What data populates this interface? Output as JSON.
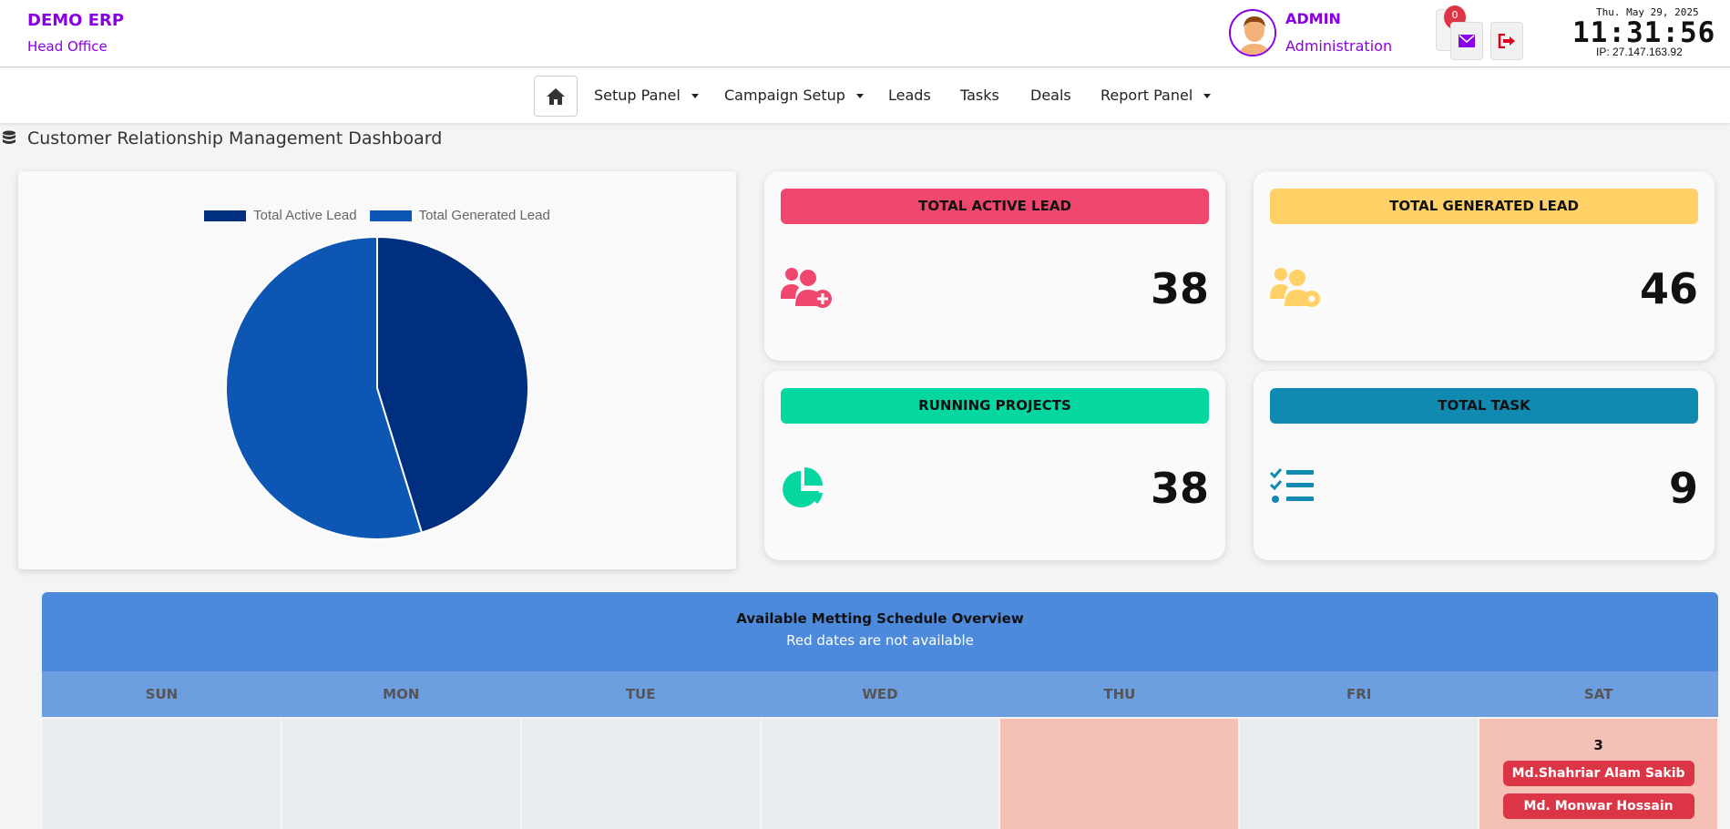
{
  "brand": {
    "name": "DEMO ERP",
    "branch": "Head Office"
  },
  "user": {
    "name": "ADMIN",
    "role": "Administration"
  },
  "notifications": {
    "count": "0"
  },
  "clock": {
    "date": "Thu. May 29, 2025",
    "time": "11:31:56",
    "ip": "IP: 27.147.163.92"
  },
  "nav": {
    "items": [
      {
        "label": "Setup Panel",
        "dropdown": true
      },
      {
        "label": "Campaign Setup",
        "dropdown": true
      },
      {
        "label": "Leads",
        "dropdown": false
      },
      {
        "label": "Tasks",
        "dropdown": false
      },
      {
        "label": "Deals",
        "dropdown": false
      },
      {
        "label": "Report Panel",
        "dropdown": true
      }
    ]
  },
  "page": {
    "title": "Customer Relationship Management Dashboard"
  },
  "chart_data": {
    "type": "pie",
    "series": [
      {
        "name": "Total Active Lead",
        "value": 38,
        "color": "#002f7f"
      },
      {
        "name": "Total Generated Lead",
        "value": 46,
        "color": "#0d56b4"
      }
    ],
    "legend": "top"
  },
  "stats": [
    {
      "label": "TOTAL ACTIVE LEAD",
      "value": "38",
      "color": "#f0476f",
      "icon": "user-add-icon"
    },
    {
      "label": "TOTAL GENERATED LEAD",
      "value": "46",
      "color": "#ffd166",
      "icon": "user-gear-icon"
    },
    {
      "label": "RUNNING PROJECTS",
      "value": "38",
      "color": "#06d6a0",
      "icon": "pie-chart-icon"
    },
    {
      "label": "TOTAL TASK",
      "value": "9",
      "color": "#118ab2",
      "icon": "task-list-icon"
    }
  ],
  "calendar": {
    "title": "Available Metting Schedule Overview",
    "subtitle": "Red dates are not available",
    "days": [
      "SUN",
      "MON",
      "TUE",
      "WED",
      "THU",
      "FRI",
      "SAT"
    ],
    "sat": {
      "date": "3",
      "events": [
        "Md.Shahriar Alam Sakib",
        "Md. Monwar Hossain"
      ]
    }
  }
}
